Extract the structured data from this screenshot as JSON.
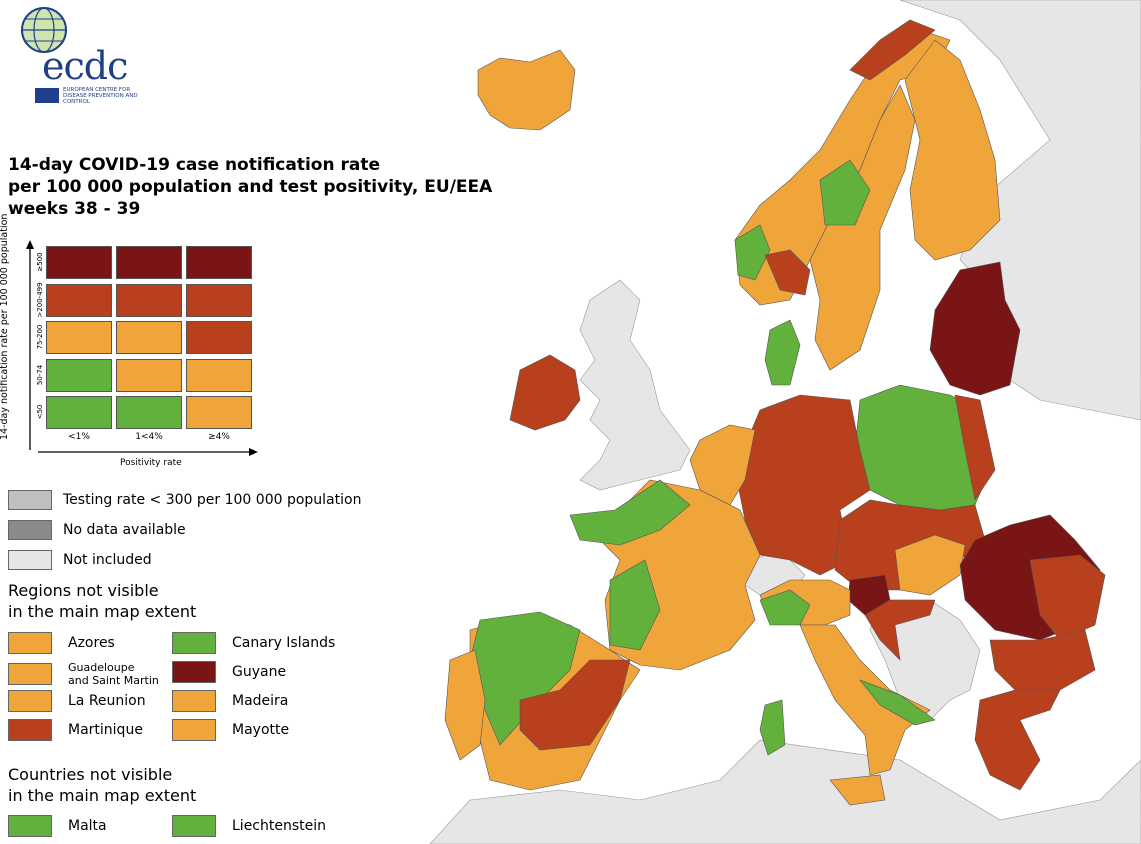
{
  "logo": {
    "name": "ecdc",
    "subtitle": "EUROPEAN CENTRE FOR DISEASE PREVENTION AND CONTROL"
  },
  "title_lines": [
    "14-day COVID-19 case notification rate",
    "per 100 000 population and test positivity, EU/EEA",
    "weeks 38 - 39"
  ],
  "matrix": {
    "y_axis_label": "14-day notification rate per 100 000 population",
    "x_axis_label": "Positivity rate",
    "rows": [
      "≥500",
      ">200-499",
      "75-200",
      "50-74",
      "<50"
    ],
    "cols": [
      "<1%",
      "1<4%",
      "≥4%"
    ],
    "cells": [
      [
        "dark_red",
        "dark_red",
        "dark_red"
      ],
      [
        "red",
        "red",
        "red"
      ],
      [
        "orange",
        "orange",
        "red"
      ],
      [
        "green",
        "orange",
        "orange"
      ],
      [
        "green",
        "green",
        "orange"
      ]
    ]
  },
  "colors": {
    "dark_red": "#7a1515",
    "red": "#b8401d",
    "orange": "#f0a53a",
    "green": "#62b13c",
    "testing": "#c0c0c0",
    "nodata": "#8a8a8a",
    "notincluded": "#e6e6e6",
    "sea": "#ffffff",
    "outline": "#555555"
  },
  "legend": [
    {
      "label": "Testing rate < 300 per 100 000 population",
      "color": "testing"
    },
    {
      "label": "No data available",
      "color": "nodata"
    },
    {
      "label": "Not included",
      "color": "notincluded"
    }
  ],
  "regions_heading": [
    "Regions not visible",
    "in the main map extent"
  ],
  "regions": [
    {
      "label": "Azores",
      "color": "orange"
    },
    {
      "label": "Canary Islands",
      "color": "green"
    },
    {
      "label": "Guadeloupe\nand Saint Martin",
      "color": "orange"
    },
    {
      "label": "Guyane",
      "color": "dark_red"
    },
    {
      "label": "La Reunion",
      "color": "orange"
    },
    {
      "label": "Madeira",
      "color": "orange"
    },
    {
      "label": "Martinique",
      "color": "red"
    },
    {
      "label": "Mayotte",
      "color": "orange"
    }
  ],
  "countries_heading": [
    "Countries not visible",
    "in the main map extent"
  ],
  "countries": [
    {
      "label": "Malta",
      "color": "green"
    },
    {
      "label": "Liechtenstein",
      "color": "green"
    }
  ]
}
